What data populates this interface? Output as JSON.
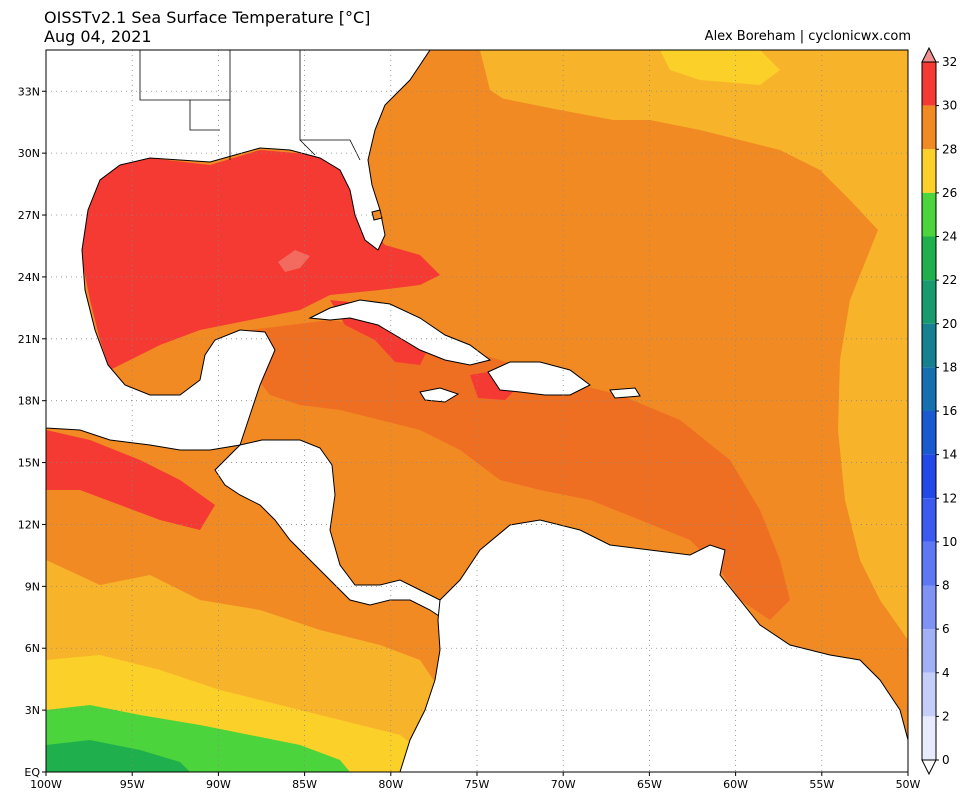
{
  "header": {
    "title": "OISSTv2.1 Sea Surface Temperature [°C]",
    "date": "Aug 04, 2021",
    "credit": "Alex Boreham | cyclonicwx.com"
  },
  "map": {
    "lon_range": [
      -100,
      -50
    ],
    "lat_range": [
      0,
      35
    ],
    "lon_ticks": [
      {
        "lon": -100,
        "label": "100W"
      },
      {
        "lon": -95,
        "label": "95W"
      },
      {
        "lon": -90,
        "label": "90W"
      },
      {
        "lon": -85,
        "label": "85W"
      },
      {
        "lon": -80,
        "label": "80W"
      },
      {
        "lon": -75,
        "label": "75W"
      },
      {
        "lon": -70,
        "label": "70W"
      },
      {
        "lon": -65,
        "label": "65W"
      },
      {
        "lon": -60,
        "label": "60W"
      },
      {
        "lon": -55,
        "label": "55W"
      },
      {
        "lon": -50,
        "label": "50W"
      }
    ],
    "lat_ticks": [
      {
        "lat": 0,
        "label": "EQ"
      },
      {
        "lat": 3,
        "label": "3N"
      },
      {
        "lat": 6,
        "label": "6N"
      },
      {
        "lat": 9,
        "label": "9N"
      },
      {
        "lat": 12,
        "label": "12N"
      },
      {
        "lat": 15,
        "label": "15N"
      },
      {
        "lat": 18,
        "label": "18N"
      },
      {
        "lat": 21,
        "label": "21N"
      },
      {
        "lat": 24,
        "label": "24N"
      },
      {
        "lat": 27,
        "label": "27N"
      },
      {
        "lat": 30,
        "label": "30N"
      },
      {
        "lat": 33,
        "label": "33N"
      }
    ],
    "gridlines": true
  },
  "colorbar": {
    "labels": [
      "32",
      "30",
      "28",
      "26",
      "24",
      "22",
      "20",
      "18",
      "16",
      "14",
      "12",
      "10",
      "8",
      "6",
      "4",
      "2",
      "0"
    ],
    "colors": {
      "32": "#f08f8f",
      "30": "#f43a33",
      "28": "#f28a24",
      "26": "#fbd028",
      "24": "#4bd43b",
      "22": "#1fb04d",
      "20": "#179a6e",
      "18": "#148090",
      "16": "#1670b0",
      "14": "#1a5ad0",
      "12": "#2248e8",
      "10": "#3a5af0",
      "8": "#5d78f2",
      "6": "#7e93f4",
      "4": "#a2b0f6",
      "2": "#c5cdf9",
      "0": "#e8ebfc"
    }
  }
}
